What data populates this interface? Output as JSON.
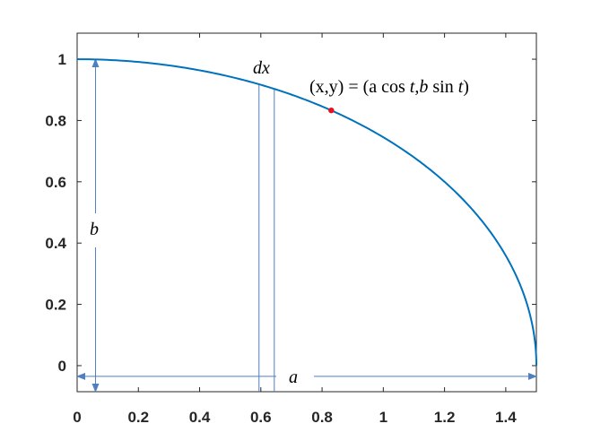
{
  "chart_data": {
    "type": "line",
    "title": "",
    "xlabel": "",
    "ylabel": "",
    "xlim": [
      0,
      1.5
    ],
    "ylim": [
      -0.085,
      1.085
    ],
    "grid": false,
    "box": true,
    "x_ticks": [
      "0",
      "0.2",
      "0.4",
      "0.6",
      "0.8",
      "1",
      "1.2",
      "1.4"
    ],
    "y_ticks": [
      "0",
      "0.2",
      "0.4",
      "0.6",
      "0.8",
      "1"
    ],
    "x_tick_values": [
      0,
      0.2,
      0.4,
      0.6,
      0.8,
      1.0,
      1.2,
      1.4
    ],
    "y_tick_values": [
      0,
      0.2,
      0.4,
      0.6,
      0.8,
      1.0
    ],
    "series": [
      {
        "kind": "quarter-ellipse",
        "a": 1.5,
        "b": 1.0,
        "t_range_deg": [
          0,
          90
        ],
        "color": "#0072bd"
      }
    ],
    "point": {
      "x": 0.83,
      "y": 0.833,
      "color": "#e8101f"
    },
    "strip": {
      "x_left": 0.594,
      "x_right": 0.644,
      "color": "#4f7fc0"
    },
    "b_arrow": {
      "x": 0.06,
      "y_from": 1.0,
      "y_to": -0.085,
      "color": "#4f7fc0"
    },
    "a_arrow": {
      "y": -0.035,
      "x_from": 0,
      "x_to": 1.5,
      "color": "#4f7fc0"
    },
    "annotations": {
      "dx_label": "dx",
      "point_label_prefix": "(x,y) = (a cos ",
      "point_label_t1": "t",
      "point_label_mid": ",",
      "point_label_b": "b",
      "point_label_sin": " sin ",
      "point_label_t2": "t",
      "point_label_suffix": ")",
      "b_label": "b",
      "a_label": "a"
    }
  }
}
